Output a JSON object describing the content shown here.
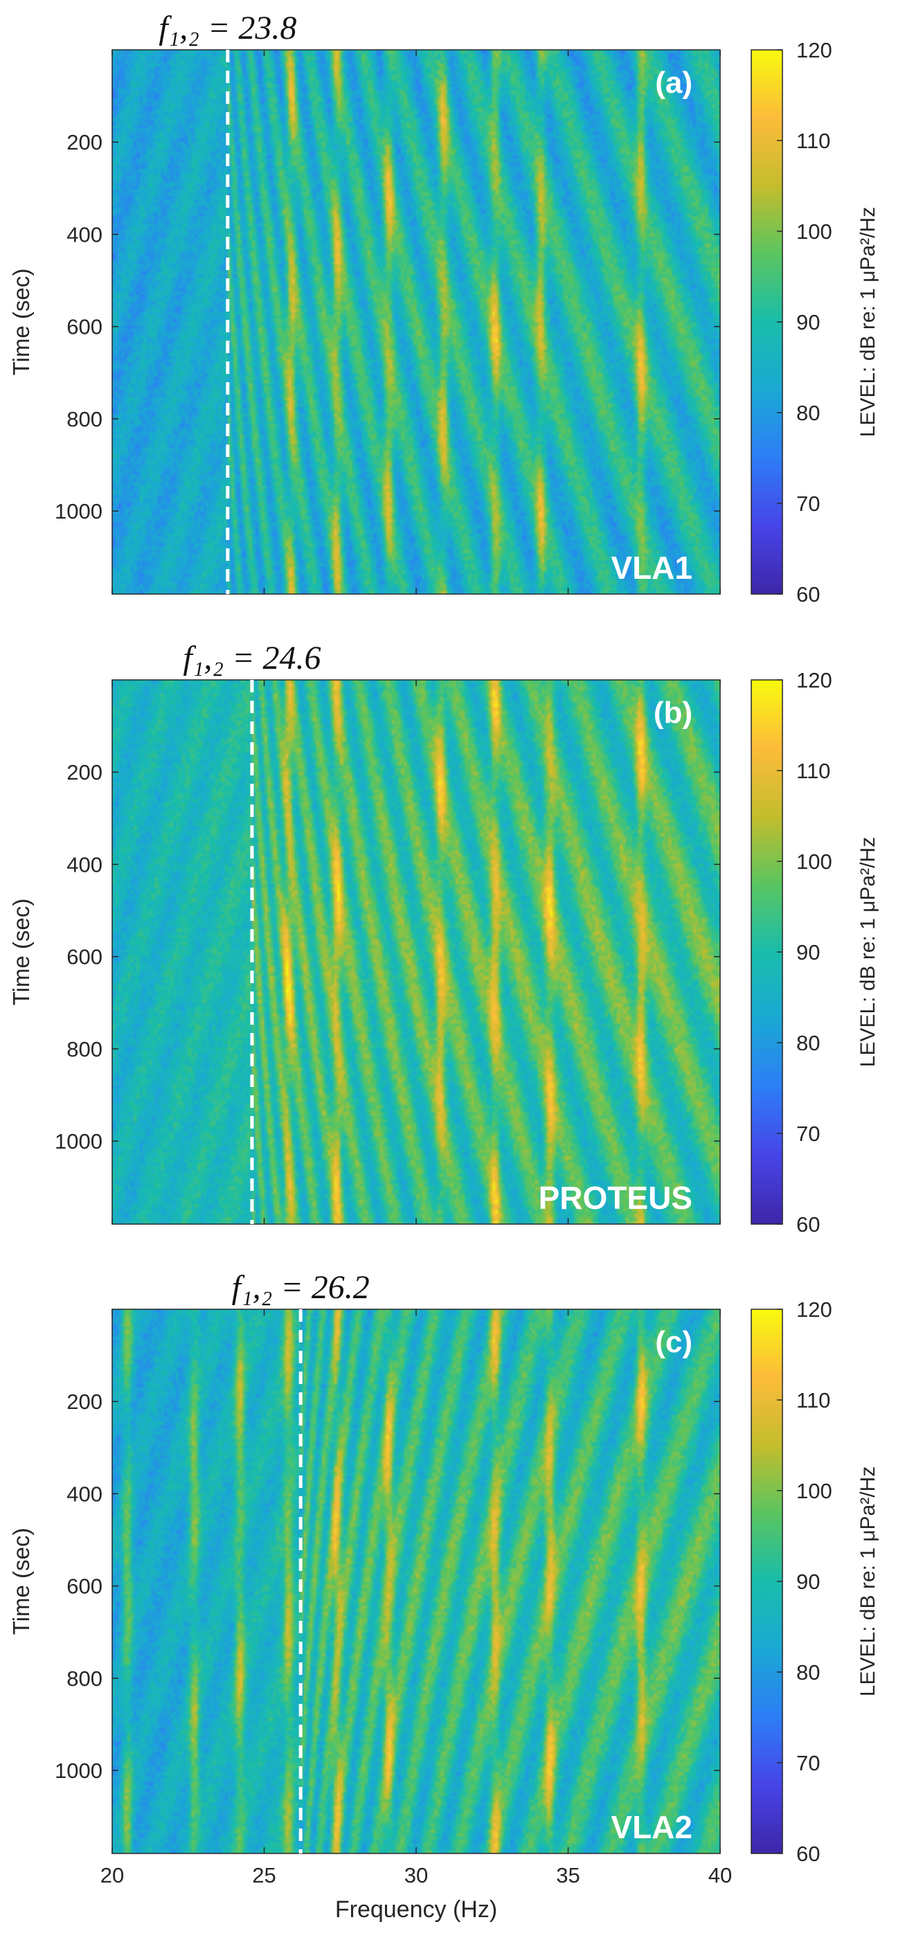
{
  "colors": {
    "colormap": [
      "#3e26a8",
      "#4744e8",
      "#2d7df6",
      "#1ba8d4",
      "#19bdab",
      "#5ac55f",
      "#c4bd2c",
      "#fdbb3b",
      "#f8fa0d"
    ],
    "marker": "#ffffff",
    "label_text": "#ffffff"
  },
  "shared": {
    "xlabel": "Frequency (Hz)",
    "ylabel": "Time (sec)",
    "colorbar_label": "LEVEL: dB re: 1 μPa²/Hz"
  },
  "chart_data": [
    {
      "type": "heatmap",
      "panel_label": "(a)",
      "station_label": "VLA1",
      "annotation": "f₁,₂ = 23.8",
      "marker_frequency": 23.8,
      "xlim": [
        20,
        40
      ],
      "ylim": [
        0,
        1180
      ],
      "y_reversed": true,
      "xticks": [
        20,
        25,
        30,
        35,
        40
      ],
      "yticks": [
        200,
        400,
        600,
        800,
        1000
      ],
      "clim": [
        60,
        120
      ],
      "cticks": [
        60,
        70,
        80,
        90,
        100,
        110,
        120
      ],
      "tonal_lines_hz": [
        25.9,
        27.4,
        29.1,
        30.9,
        32.6,
        34.1,
        37.4
      ],
      "noise_floor_db": 85,
      "peak_level_db": 112
    },
    {
      "type": "heatmap",
      "panel_label": "(b)",
      "station_label": "PROTEUS",
      "annotation": "f₁,₂ = 24.6",
      "marker_frequency": 24.6,
      "xlim": [
        20,
        40
      ],
      "ylim": [
        0,
        1180
      ],
      "y_reversed": true,
      "xticks": [
        20,
        25,
        30,
        35,
        40
      ],
      "yticks": [
        200,
        400,
        600,
        800,
        1000
      ],
      "clim": [
        60,
        120
      ],
      "cticks": [
        60,
        70,
        80,
        90,
        100,
        110,
        120
      ],
      "tonal_lines_hz": [
        25.8,
        27.4,
        30.8,
        32.6,
        34.4,
        37.4
      ],
      "noise_floor_db": 90,
      "peak_level_db": 112
    },
    {
      "type": "heatmap",
      "panel_label": "(c)",
      "station_label": "VLA2",
      "annotation": "f₁,₂ = 26.2",
      "marker_frequency": 26.2,
      "xlim": [
        20,
        40
      ],
      "ylim": [
        0,
        1180
      ],
      "y_reversed": true,
      "xticks": [
        20,
        25,
        30,
        35,
        40
      ],
      "yticks": [
        200,
        400,
        600,
        800,
        1000
      ],
      "clim": [
        60,
        120
      ],
      "cticks": [
        60,
        70,
        80,
        90,
        100,
        110,
        120
      ],
      "tonal_lines_hz": [
        20.5,
        22.7,
        24.2,
        25.8,
        27.4,
        29.1,
        32.6,
        34.4,
        37.4
      ],
      "noise_floor_db": 88,
      "peak_level_db": 112
    }
  ]
}
